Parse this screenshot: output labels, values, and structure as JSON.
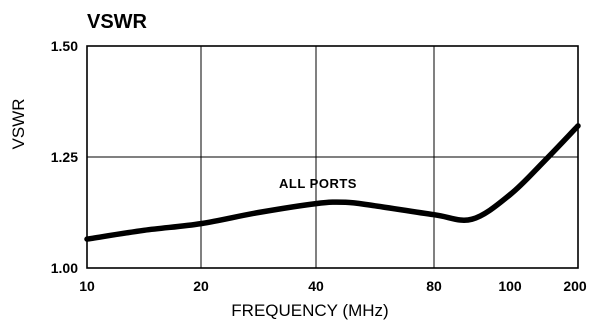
{
  "chart_data": {
    "type": "line",
    "title": "VSWR",
    "xlabel": "FREQUENCY (MHz)",
    "ylabel": "VSWR",
    "x_categories": [
      "10",
      "20",
      "40",
      "80",
      "100",
      "200"
    ],
    "y_ticks": [
      "1.50",
      "1.25",
      "1.00"
    ],
    "ylim": [
      1.0,
      1.5
    ],
    "grid": true,
    "series": [
      {
        "name": "ALL PORTS",
        "points": [
          {
            "x": 10,
            "y": 1.065
          },
          {
            "x": 15,
            "y": 1.085
          },
          {
            "x": 20,
            "y": 1.1
          },
          {
            "x": 30,
            "y": 1.125
          },
          {
            "x": 40,
            "y": 1.145
          },
          {
            "x": 50,
            "y": 1.148
          },
          {
            "x": 60,
            "y": 1.14
          },
          {
            "x": 80,
            "y": 1.12
          },
          {
            "x": 90,
            "y": 1.11
          },
          {
            "x": 100,
            "y": 1.165
          },
          {
            "x": 150,
            "y": 1.24
          },
          {
            "x": 200,
            "y": 1.32
          }
        ]
      }
    ],
    "annotations": [
      "ALL PORTS"
    ]
  }
}
